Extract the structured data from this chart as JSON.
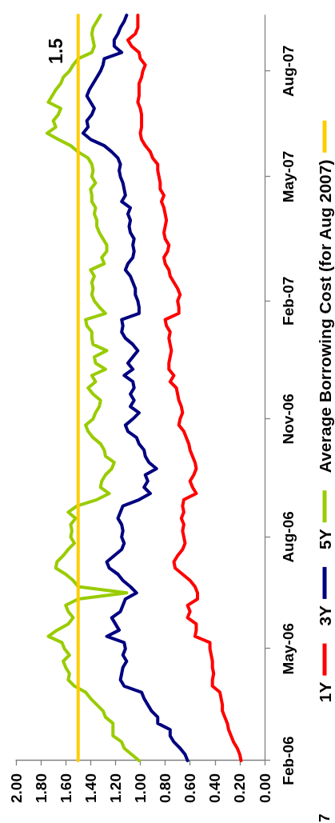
{
  "chart_data": {
    "type": "line",
    "orientation": "horizontal",
    "categories": [
      null,
      null,
      null,
      null,
      null,
      null,
      null,
      null,
      null,
      "Aug-07",
      null,
      null,
      null,
      null,
      null,
      null,
      null,
      null,
      null,
      null,
      null,
      null,
      null,
      null,
      null,
      null,
      "May-07",
      null,
      null,
      null,
      null,
      null,
      null,
      null,
      null,
      null,
      null,
      null,
      null,
      null,
      null,
      null,
      null,
      null,
      null,
      null,
      "Feb-07",
      null,
      null,
      null,
      null,
      null,
      null,
      null,
      null,
      null,
      null,
      null,
      null,
      null,
      null,
      null,
      null,
      null,
      null,
      "Nov-06",
      null,
      null,
      null,
      null,
      null,
      null,
      null,
      null,
      null,
      null,
      null,
      null,
      null,
      null,
      null,
      null,
      null,
      null,
      "Aug-06",
      null,
      null,
      null,
      null,
      null,
      null,
      null,
      null,
      null,
      null,
      null,
      null,
      null,
      null,
      null,
      null,
      null,
      "May-06",
      null,
      null,
      null,
      null,
      null,
      null,
      null,
      null,
      null,
      null,
      null,
      null,
      null,
      null,
      null,
      null,
      null,
      "Feb-06"
    ],
    "xlim": [
      2,
      0
    ],
    "xticks": [
      {
        "value": 2,
        "label": "2.00"
      },
      {
        "value": 1.8,
        "label": "1.80"
      },
      {
        "value": 1.6,
        "label": "1.60"
      },
      {
        "value": 1.4,
        "label": "1.40"
      },
      {
        "value": 1.2,
        "label": "1.20"
      },
      {
        "value": 1,
        "label": "1.00"
      },
      {
        "value": 0.8,
        "label": "0.80"
      },
      {
        "value": 0.6,
        "label": "0.60"
      },
      {
        "value": 0.4,
        "label": "0.40"
      },
      {
        "value": 0.2,
        "label": "0.20"
      },
      {
        "value": 0,
        "label": "0.00"
      }
    ],
    "legend": "right",
    "marker": "none",
    "series": [
      {
        "name": "1Y",
        "color": "#ff0000",
        "values": [
          1.02,
          1.02,
          1.02,
          1.04,
          1.1,
          1.07,
          1.01,
          1.0,
          0.96,
          0.98,
          0.99,
          1.01,
          1.01,
          1.01,
          1.02,
          1.0,
          0.99,
          0.99,
          0.99,
          1.0,
          0.99,
          0.96,
          0.92,
          0.9,
          0.86,
          0.86,
          0.85,
          0.84,
          0.84,
          0.81,
          0.83,
          0.81,
          0.8,
          0.79,
          0.8,
          0.81,
          0.8,
          0.77,
          0.78,
          0.81,
          0.8,
          0.77,
          0.76,
          0.73,
          0.7,
          0.68,
          0.7,
          0.69,
          0.69,
          0.8,
          0.79,
          0.76,
          0.77,
          0.76,
          0.75,
          0.76,
          0.77,
          0.77,
          0.73,
          0.76,
          0.71,
          0.7,
          0.69,
          0.67,
          0.66,
          0.68,
          0.69,
          0.65,
          0.63,
          0.61,
          0.6,
          0.58,
          0.56,
          0.55,
          0.57,
          0.6,
          0.58,
          0.55,
          0.65,
          0.66,
          0.65,
          0.67,
          0.65,
          0.66,
          0.65,
          0.64,
          0.66,
          0.7,
          0.73,
          0.72,
          0.66,
          0.6,
          0.56,
          0.54,
          0.54,
          0.62,
          0.6,
          0.62,
          0.55,
          0.55,
          0.56,
          0.44,
          0.44,
          0.43,
          0.42,
          0.42,
          0.41,
          0.42,
          0.42,
          0.36,
          0.35,
          0.34,
          0.34,
          0.32,
          0.3,
          0.29,
          0.27,
          0.25,
          0.22,
          0.2,
          0.19
        ]
      },
      {
        "name": "3Y",
        "color": "#000080",
        "values": [
          1.11,
          1.13,
          1.16,
          1.18,
          1.21,
          1.21,
          1.15,
          1.29,
          1.3,
          1.32,
          1.35,
          1.38,
          1.41,
          1.43,
          1.4,
          1.37,
          1.39,
          1.43,
          1.42,
          1.46,
          1.4,
          1.29,
          1.23,
          1.18,
          1.16,
          1.17,
          1.16,
          1.14,
          1.13,
          1.12,
          1.15,
          1.08,
          1.1,
          1.08,
          1.09,
          1.08,
          1.05,
          1.06,
          1.05,
          1.06,
          1.1,
          1.12,
          1.08,
          1.06,
          1.04,
          1.04,
          1.02,
          1.01,
          1.01,
          1.15,
          1.14,
          1.15,
          1.12,
          1.06,
          1.02,
          1.06,
          1.1,
          1.06,
          1.13,
          1.06,
          1.05,
          1.08,
          1.05,
          1.08,
          1.01,
          1.06,
          1.12,
          1.1,
          1.03,
          1.01,
          0.97,
          0.96,
          0.93,
          0.87,
          0.96,
          0.94,
          0.97,
          0.92,
          1.01,
          1.14,
          1.16,
          1.18,
          1.15,
          1.14,
          1.15,
          1.13,
          1.15,
          1.21,
          1.27,
          1.25,
          1.18,
          1.14,
          1.08,
          1.03,
          1.12,
          1.14,
          1.16,
          1.23,
          1.2,
          1.17,
          1.27,
          1.13,
          1.12,
          1.14,
          1.11,
          1.14,
          1.15,
          1.16,
          1.13,
          0.99,
          0.97,
          0.94,
          0.91,
          0.86,
          0.86,
          0.76,
          0.76,
          0.73,
          0.68,
          0.64,
          0.62
        ]
      },
      {
        "name": "5Y",
        "color": "#99cc00",
        "values": [
          1.32,
          1.35,
          1.38,
          1.39,
          1.38,
          1.37,
          1.39,
          1.5,
          1.54,
          1.57,
          1.62,
          1.64,
          1.68,
          1.71,
          1.74,
          1.64,
          1.66,
          1.7,
          1.68,
          1.75,
          1.66,
          1.56,
          1.5,
          1.42,
          1.39,
          1.38,
          1.39,
          1.36,
          1.4,
          1.39,
          1.39,
          1.36,
          1.37,
          1.35,
          1.35,
          1.33,
          1.3,
          1.27,
          1.27,
          1.31,
          1.29,
          1.4,
          1.37,
          1.39,
          1.38,
          1.39,
          1.37,
          1.33,
          1.28,
          1.44,
          1.43,
          1.39,
          1.39,
          1.38,
          1.27,
          1.37,
          1.36,
          1.28,
          1.39,
          1.36,
          1.42,
          1.38,
          1.32,
          1.33,
          1.36,
          1.38,
          1.44,
          1.42,
          1.38,
          1.32,
          1.29,
          1.28,
          1.21,
          1.23,
          1.28,
          1.31,
          1.32,
          1.25,
          1.35,
          1.51,
          1.58,
          1.52,
          1.56,
          1.55,
          1.56,
          1.53,
          1.58,
          1.62,
          1.67,
          1.68,
          1.6,
          1.54,
          1.5,
          1.11,
          1.5,
          1.6,
          1.58,
          1.54,
          1.58,
          1.67,
          1.74,
          1.63,
          1.61,
          1.57,
          1.62,
          1.6,
          1.57,
          1.58,
          1.53,
          1.44,
          1.4,
          1.35,
          1.3,
          1.28,
          1.22,
          1.22,
          1.22,
          1.15,
          1.13,
          1.07,
          1.01
        ]
      },
      {
        "name": "Average Borrowing Cost (for Aug 2007)",
        "color": "#ffcc00",
        "values": [
          1.5,
          1.5,
          1.5,
          1.5,
          1.5,
          1.5,
          1.5,
          1.5,
          1.5,
          1.5,
          1.5,
          1.5,
          1.5,
          1.5,
          1.5,
          1.5,
          1.5,
          1.5,
          1.5,
          1.5,
          1.5,
          1.5,
          1.5,
          1.5,
          1.5,
          1.5,
          1.5,
          1.5,
          1.5,
          1.5,
          1.5,
          1.5,
          1.5,
          1.5,
          1.5,
          1.5,
          1.5,
          1.5,
          1.5,
          1.5,
          1.5,
          1.5,
          1.5,
          1.5,
          1.5,
          1.5,
          1.5,
          1.5,
          1.5,
          1.5,
          1.5,
          1.5,
          1.5,
          1.5,
          1.5,
          1.5,
          1.5,
          1.5,
          1.5,
          1.5,
          1.5,
          1.5,
          1.5,
          1.5,
          1.5,
          1.5,
          1.5,
          1.5,
          1.5,
          1.5,
          1.5,
          1.5,
          1.5,
          1.5,
          1.5,
          1.5,
          1.5,
          1.5,
          1.5,
          1.5,
          1.5,
          1.5,
          1.5,
          1.5,
          1.5,
          1.5,
          1.5,
          1.5,
          1.5,
          1.5,
          1.5,
          1.5,
          1.5,
          1.5,
          1.5,
          1.5,
          1.5,
          1.5,
          1.5,
          1.5,
          1.5,
          1.5,
          1.5,
          1.5,
          1.5,
          1.5,
          1.5,
          1.5,
          1.5,
          1.5,
          1.5,
          1.5,
          1.5,
          1.5,
          1.5,
          1.5,
          1.5,
          1.5,
          1.5,
          1.5,
          1.5
        ]
      }
    ],
    "annotations": [
      {
        "text": "1.5",
        "x": 1.5,
        "y": "Aug-07"
      },
      "7"
    ]
  }
}
